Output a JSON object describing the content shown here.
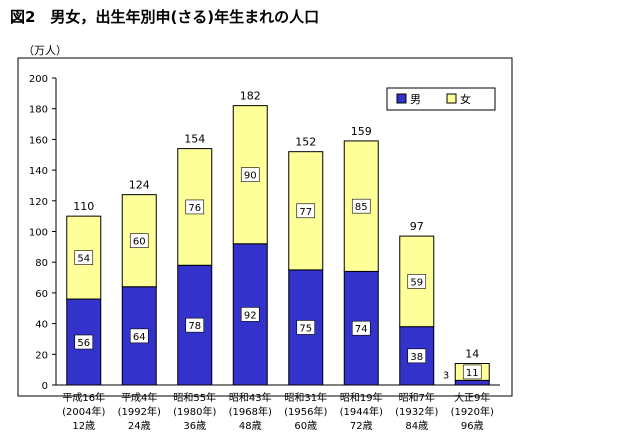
{
  "title": "図2　男女，出生年別申(さる)年生まれの人口",
  "chart_data": {
    "type": "bar",
    "stacked": true,
    "title": "図2　男女，出生年別申(さる)年生まれの人口",
    "ylabel": "（万人）",
    "ylim": [
      0,
      200
    ],
    "yticks": [
      0,
      20,
      40,
      60,
      80,
      100,
      120,
      140,
      160,
      180,
      200
    ],
    "categories": [
      [
        "平成16年",
        "(2004年)",
        "12歳"
      ],
      [
        "平成4年",
        "(1992年)",
        "24歳"
      ],
      [
        "昭和55年",
        "(1980年)",
        "36歳"
      ],
      [
        "昭和43年",
        "(1968年)",
        "48歳"
      ],
      [
        "昭和31年",
        "(1956年)",
        "60歳"
      ],
      [
        "昭和19年",
        "(1944年)",
        "72歳"
      ],
      [
        "昭和7年",
        "(1932年)",
        "84歳"
      ],
      [
        "大正9年",
        "(1920年)",
        "96歳"
      ]
    ],
    "series": [
      {
        "name": "男",
        "color": "#3333cc",
        "values": [
          56,
          64,
          78,
          92,
          75,
          74,
          38,
          3
        ]
      },
      {
        "name": "女",
        "color": "#ffff99",
        "values": [
          54,
          60,
          76,
          90,
          77,
          85,
          59,
          11
        ]
      }
    ],
    "totals": [
      110,
      124,
      154,
      182,
      152,
      159,
      97,
      14
    ],
    "legend_position": "top-right",
    "grid": false
  }
}
